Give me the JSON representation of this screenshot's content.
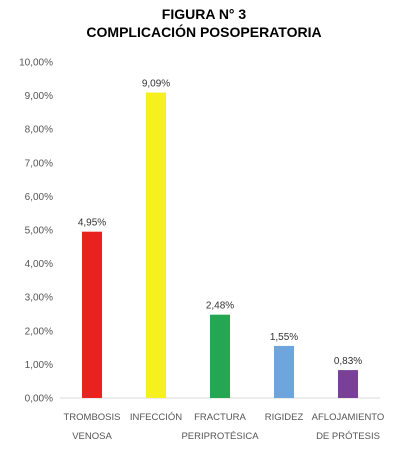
{
  "figure": {
    "number_label": "FIGURA N° 3",
    "title": "COMPLICACIÓN POSOPERATORIA"
  },
  "chart_data": {
    "type": "bar",
    "title": "COMPLICACIÓN POSOPERATORIA",
    "categories": [
      [
        "TROMBOSIS",
        "VENOSA"
      ],
      [
        "INFECCIÓN"
      ],
      [
        "FRACTURA",
        "PERIPROTÉSICA"
      ],
      [
        "RIGIDEZ"
      ],
      [
        "AFLOJAMIENTO",
        "DE PRÓTESIS"
      ]
    ],
    "values": [
      4.95,
      9.09,
      2.48,
      1.55,
      0.83
    ],
    "data_labels": [
      "4,95%",
      "9,09%",
      "2,48%",
      "1,55%",
      "0,83%"
    ],
    "bar_colors": [
      "#e8231f",
      "#f6f01e",
      "#25a652",
      "#6fa5dd",
      "#7a3f97"
    ],
    "ylim": [
      0,
      10
    ],
    "y_ticks": [
      "0,00%",
      "1,00%",
      "2,00%",
      "3,00%",
      "4,00%",
      "5,00%",
      "6,00%",
      "7,00%",
      "8,00%",
      "9,00%",
      "10,00%"
    ],
    "grid": false,
    "xlabel": "",
    "ylabel": ""
  }
}
